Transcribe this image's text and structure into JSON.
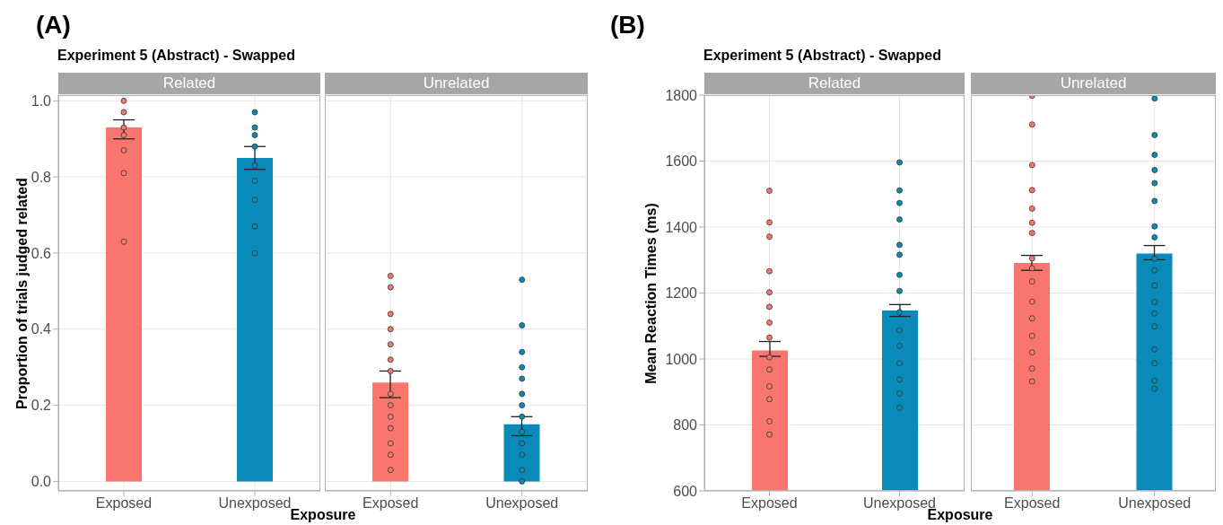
{
  "chart_data": [
    {
      "type": "bar",
      "title": "Experiment 5 (Abstract) - Swapped",
      "subtitle": "Related",
      "xlabel": "Exposure",
      "ylabel": "Proportion of trials judged related",
      "annotations": [
        "(A)"
      ],
      "categories": [
        "Exposed",
        "Unexposed"
      ],
      "series": [
        {
          "values": [
            0.93,
            0.85
          ],
          "colors": [
            "#f8766d",
            "#0a8ab8"
          ],
          "errors": [
            [
              0.9,
              0.95
            ],
            [
              0.82,
              0.88
            ]
          ]
        },
        {
          "type": "scatter",
          "x": [
            "Exposed",
            "Exposed",
            "Exposed",
            "Exposed",
            "Exposed",
            "Exposed",
            "Exposed",
            "Unexposed",
            "Unexposed",
            "Unexposed",
            "Unexposed",
            "Unexposed",
            "Unexposed",
            "Unexposed",
            "Unexposed",
            "Unexposed"
          ],
          "values": [
            1.0,
            0.97,
            0.93,
            0.91,
            0.87,
            0.81,
            0.63,
            0.97,
            0.93,
            0.91,
            0.88,
            0.83,
            0.79,
            0.74,
            0.67,
            0.6
          ],
          "colors": [
            "#f8766d",
            "#f8766d",
            "#f8766d",
            "#f8766d",
            "#f8766d",
            "#f8766d",
            "#f8766d",
            "#0a8ab8",
            "#0a8ab8",
            "#0a8ab8",
            "#0a8ab8",
            "#0a8ab8",
            "#0a8ab8",
            "#0a8ab8",
            "#0a8ab8",
            "#0a8ab8"
          ]
        }
      ],
      "ylim": [
        -0.025,
        1.015
      ],
      "yticks": [
        {
          "value": 0,
          "label": "0.0"
        },
        0.2,
        0.4,
        0.6,
        0.8,
        {
          "value": 1,
          "label": "1.0"
        }
      ],
      "grid": true
    },
    {
      "type": "bar",
      "subtitle": "Unrelated",
      "categories": [
        "Exposed",
        "Unexposed"
      ],
      "series": [
        {
          "values": [
            0.26,
            0.15
          ],
          "colors": [
            "#f8766d",
            "#0a8ab8"
          ],
          "errors": [
            [
              0.22,
              0.29
            ],
            [
              0.12,
              0.17
            ]
          ]
        },
        {
          "type": "scatter",
          "x": [
            "Exposed",
            "Exposed",
            "Exposed",
            "Exposed",
            "Exposed",
            "Exposed",
            "Exposed",
            "Exposed",
            "Exposed",
            "Exposed",
            "Exposed",
            "Exposed",
            "Exposed",
            "Exposed",
            "Unexposed",
            "Unexposed",
            "Unexposed",
            "Unexposed",
            "Unexposed",
            "Unexposed",
            "Unexposed",
            "Unexposed",
            "Unexposed",
            "Unexposed",
            "Unexposed",
            "Unexposed",
            "Unexposed"
          ],
          "values": [
            0.54,
            0.51,
            0.44,
            0.4,
            0.36,
            0.32,
            0.29,
            0.23,
            0.2,
            0.17,
            0.14,
            0.1,
            0.07,
            0.03,
            0.53,
            0.41,
            0.34,
            0.3,
            0.27,
            0.23,
            0.2,
            0.17,
            0.13,
            0.1,
            0.07,
            0.03,
            0.0
          ],
          "colors": [
            "#f8766d",
            "#f8766d",
            "#f8766d",
            "#f8766d",
            "#f8766d",
            "#f8766d",
            "#f8766d",
            "#f8766d",
            "#f8766d",
            "#f8766d",
            "#f8766d",
            "#f8766d",
            "#f8766d",
            "#f8766d",
            "#0a8ab8",
            "#0a8ab8",
            "#0a8ab8",
            "#0a8ab8",
            "#0a8ab8",
            "#0a8ab8",
            "#0a8ab8",
            "#0a8ab8",
            "#0a8ab8",
            "#0a8ab8",
            "#0a8ab8",
            "#0a8ab8",
            "#0a8ab8"
          ]
        }
      ],
      "ylim": [
        -0.025,
        1.015
      ],
      "yticks": [
        0,
        0.2,
        0.4,
        0.6,
        0.8,
        1
      ],
      "grid": true,
      "tick_labels": "x"
    },
    {
      "type": "bar",
      "title": "Experiment 5 (Abstract) - Swapped",
      "subtitle": "Related",
      "xlabel": "Exposure",
      "ylabel": "Mean Reaction Times (ms)",
      "annotations": [
        "(B)"
      ],
      "categories": [
        "Exposed",
        "Unexposed"
      ],
      "series": [
        {
          "values": [
            1026,
            1147
          ],
          "colors": [
            "#f8766d",
            "#0a8ab8"
          ],
          "errors": [
            [
              1008,
              1053
            ],
            [
              1129,
              1165
            ]
          ]
        },
        {
          "type": "scatter",
          "x": [
            "Exposed",
            "Exposed",
            "Exposed",
            "Exposed",
            "Exposed",
            "Exposed",
            "Exposed",
            "Exposed",
            "Exposed",
            "Exposed",
            "Exposed",
            "Exposed",
            "Exposed",
            "Exposed",
            "Unexposed",
            "Unexposed",
            "Unexposed",
            "Unexposed",
            "Unexposed",
            "Unexposed",
            "Unexposed",
            "Unexposed",
            "Unexposed",
            "Unexposed",
            "Unexposed",
            "Unexposed",
            "Unexposed",
            "Unexposed",
            "Unexposed"
          ],
          "values": [
            1510,
            1414,
            1371,
            1266,
            1202,
            1158,
            1110,
            1065,
            1005,
            968,
            917,
            878,
            811,
            771,
            1596,
            1511,
            1473,
            1423,
            1346,
            1316,
            1255,
            1206,
            1142,
            1087,
            1040,
            987,
            938,
            895,
            852
          ],
          "colors": [
            "#f8766d",
            "#f8766d",
            "#f8766d",
            "#f8766d",
            "#f8766d",
            "#f8766d",
            "#f8766d",
            "#f8766d",
            "#f8766d",
            "#f8766d",
            "#f8766d",
            "#f8766d",
            "#f8766d",
            "#f8766d",
            "#0a8ab8",
            "#0a8ab8",
            "#0a8ab8",
            "#0a8ab8",
            "#0a8ab8",
            "#0a8ab8",
            "#0a8ab8",
            "#0a8ab8",
            "#0a8ab8",
            "#0a8ab8",
            "#0a8ab8",
            "#0a8ab8",
            "#0a8ab8",
            "#0a8ab8",
            "#0a8ab8"
          ]
        }
      ],
      "ylim": [
        600,
        1800
      ],
      "yticks": [
        600,
        800,
        1000,
        1200,
        1400,
        1600,
        1800
      ],
      "grid": true
    },
    {
      "type": "bar",
      "subtitle": "Unrelated",
      "categories": [
        "Exposed",
        "Unexposed"
      ],
      "series": [
        {
          "values": [
            1291,
            1320
          ],
          "colors": [
            "#f8766d",
            "#0a8ab8"
          ],
          "errors": [
            [
              1269,
              1314
            ],
            [
              1301,
              1344
            ]
          ]
        },
        {
          "type": "scatter",
          "x": [
            "Exposed",
            "Exposed",
            "Exposed",
            "Exposed",
            "Exposed",
            "Exposed",
            "Exposed",
            "Exposed",
            "Exposed",
            "Exposed",
            "Exposed",
            "Exposed",
            "Exposed",
            "Exposed",
            "Exposed",
            "Exposed",
            "Unexposed",
            "Unexposed",
            "Unexposed",
            "Unexposed",
            "Unexposed",
            "Unexposed",
            "Unexposed",
            "Unexposed",
            "Unexposed",
            "Unexposed",
            "Unexposed",
            "Unexposed",
            "Unexposed",
            "Unexposed",
            "Unexposed",
            "Unexposed",
            "Unexposed",
            "Unexposed"
          ],
          "values": [
            1798,
            1711,
            1588,
            1512,
            1456,
            1413,
            1382,
            1305,
            1275,
            1235,
            1174,
            1123,
            1070,
            1020,
            971,
            932,
            1790,
            1679,
            1619,
            1573,
            1533,
            1479,
            1402,
            1369,
            1304,
            1269,
            1223,
            1173,
            1138,
            1099,
            1029,
            987,
            934,
            910
          ],
          "colors": [
            "#f8766d",
            "#f8766d",
            "#f8766d",
            "#f8766d",
            "#f8766d",
            "#f8766d",
            "#f8766d",
            "#f8766d",
            "#f8766d",
            "#f8766d",
            "#f8766d",
            "#f8766d",
            "#f8766d",
            "#f8766d",
            "#f8766d",
            "#f8766d",
            "#0a8ab8",
            "#0a8ab8",
            "#0a8ab8",
            "#0a8ab8",
            "#0a8ab8",
            "#0a8ab8",
            "#0a8ab8",
            "#0a8ab8",
            "#0a8ab8",
            "#0a8ab8",
            "#0a8ab8",
            "#0a8ab8",
            "#0a8ab8",
            "#0a8ab8",
            "#0a8ab8",
            "#0a8ab8",
            "#0a8ab8",
            "#0a8ab8"
          ]
        }
      ],
      "ylim": [
        600,
        1800
      ],
      "yticks": [
        600,
        800,
        1000,
        1200,
        1400,
        1600,
        1800
      ],
      "grid": true,
      "tick_labels": "x"
    }
  ]
}
